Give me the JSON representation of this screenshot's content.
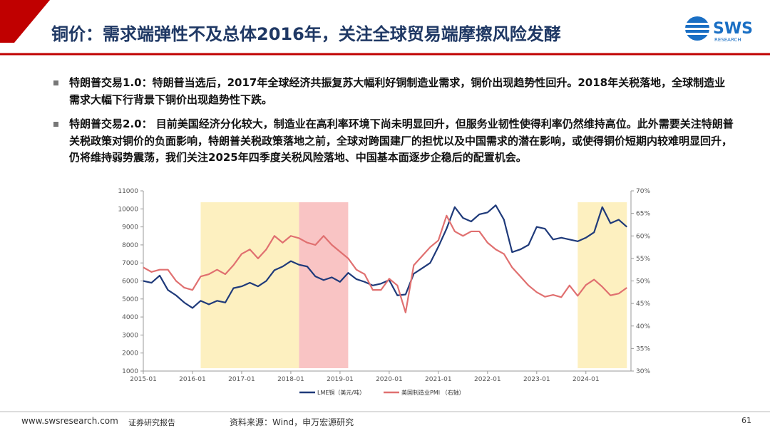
{
  "header": {
    "title": "铜价：需求端弹性不及总体2016年，关注全球贸易端摩擦风险发酵",
    "logo": "SWS",
    "logo_sub": "RESEARCH"
  },
  "bullets": [
    "特朗普交易1.0：特朗普当选后，2017年全球经济共振复苏大幅利好铜制造业需求，铜价出现趋势性回升。2018年关税落地，全球制造业需求大幅下行背景下铜价出现趋势性下跌。",
    "特朗普交易2.0：  目前美国经济分化较大，制造业在高利率环境下尚未明显回升，但服务业韧性使得利率仍然维持高位。此外需要关注特朗普关税政策对铜价的负面影响，特朗普关税政策落地之前，全球对跨国建厂的担忧以及中国需求的潜在影响，或使得铜价短期内较难明显回升，仍将维持弱势震荡，我们关注2025年四季度关税风险落地、中国基本面逐步企稳后的配置机会。"
  ],
  "chart_data": {
    "type": "line",
    "x": [
      "2015-01",
      "2015-03",
      "2015-05",
      "2015-07",
      "2015-09",
      "2015-11",
      "2016-01",
      "2016-03",
      "2016-05",
      "2016-07",
      "2016-09",
      "2016-11",
      "2017-01",
      "2017-03",
      "2017-05",
      "2017-07",
      "2017-09",
      "2017-11",
      "2018-01",
      "2018-03",
      "2018-05",
      "2018-07",
      "2018-09",
      "2018-11",
      "2019-01",
      "2019-03",
      "2019-05",
      "2019-07",
      "2019-09",
      "2019-11",
      "2020-01",
      "2020-03",
      "2020-05",
      "2020-07",
      "2020-09",
      "2020-11",
      "2021-01",
      "2021-03",
      "2021-05",
      "2021-07",
      "2021-09",
      "2021-11",
      "2022-01",
      "2022-03",
      "2022-05",
      "2022-07",
      "2022-09",
      "2022-11",
      "2023-01",
      "2023-03",
      "2023-05",
      "2023-07",
      "2023-09",
      "2023-11",
      "2024-01",
      "2024-03",
      "2024-05",
      "2024-07",
      "2024-09",
      "2024-11"
    ],
    "series": [
      {
        "name": "LME铜（美元/吨）",
        "color": "#1f3a7a",
        "axis": "y",
        "values": [
          6000,
          5900,
          6300,
          5500,
          5200,
          4800,
          4500,
          4900,
          4700,
          4900,
          4800,
          5600,
          5700,
          5900,
          5700,
          6000,
          6600,
          6800,
          7100,
          6900,
          6800,
          6250,
          6050,
          6200,
          5950,
          6450,
          6100,
          5950,
          5750,
          5850,
          6050,
          5200,
          5250,
          6400,
          6700,
          7000,
          7900,
          8900,
          10100,
          9500,
          9300,
          9700,
          9800,
          10200,
          9400,
          7600,
          7750,
          8000,
          9000,
          8900,
          8300,
          8400,
          8300,
          8200,
          8400,
          8700,
          10100,
          9200,
          9400,
          9000
        ]
      },
      {
        "name": "美国制造业PMI （右轴）",
        "color": "#e07070",
        "axis": "y2",
        "values": [
          53,
          52,
          52.5,
          52.5,
          50,
          48.5,
          48,
          51,
          51.5,
          52.5,
          51.5,
          53.5,
          56,
          57,
          55,
          57,
          60,
          58.5,
          60,
          59.5,
          58.5,
          58,
          60,
          58,
          56.5,
          55,
          52.5,
          51.5,
          48,
          48,
          50.5,
          49,
          43,
          53.5,
          55.5,
          57.5,
          59,
          64.5,
          61,
          60,
          61,
          61,
          58.5,
          57,
          56,
          53,
          51,
          49,
          47.5,
          46.5,
          46.9,
          46.4,
          49,
          46.7,
          49.1,
          50.3,
          48.7,
          46.8,
          47.2,
          48.5
        ]
      }
    ],
    "xlim": [
      "2015-01",
      "2024-12"
    ],
    "xticks": [
      "2015-01",
      "2016-01",
      "2017-01",
      "2018-01",
      "2019-01",
      "2020-01",
      "2021-01",
      "2022-01",
      "2023-01",
      "2024-01"
    ],
    "ylim": [
      1000,
      11000
    ],
    "yticks": [
      1000,
      2000,
      3000,
      4000,
      5000,
      6000,
      7000,
      8000,
      9000,
      10000,
      11000
    ],
    "y2lim": [
      30,
      70
    ],
    "y2ticks": [
      {
        "value": 30,
        "label": "30%"
      },
      {
        "value": 35,
        "label": "35%"
      },
      {
        "value": 40,
        "label": "40%"
      },
      {
        "value": 45,
        "label": "45%"
      },
      {
        "value": 50,
        "label": "50%"
      },
      {
        "value": 55,
        "label": "55%"
      },
      {
        "value": 60,
        "label": "60%"
      },
      {
        "value": 65,
        "label": "65%"
      },
      {
        "value": 70,
        "label": "70%"
      }
    ],
    "shaded": [
      {
        "start": "2016-03",
        "end": "2018-03",
        "color": "#fdf0c0"
      },
      {
        "start": "2018-03",
        "end": "2019-03",
        "color": "#f9c4c4"
      },
      {
        "start": "2023-11",
        "end": "2024-11",
        "color": "#fdf0c0"
      }
    ],
    "legend": "bottom"
  },
  "footer": {
    "site": "www.swsresearch.com",
    "report": "证券研究报告",
    "source": "资料来源：Wind，申万宏源研究",
    "page": "61"
  }
}
